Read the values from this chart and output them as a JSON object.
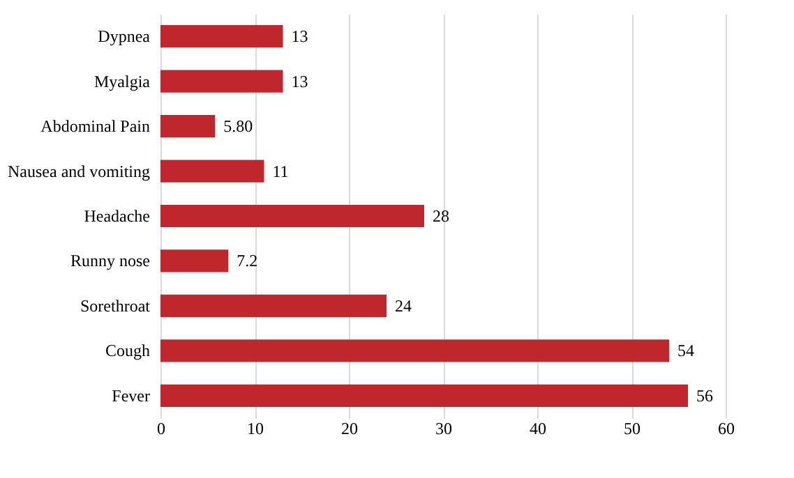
{
  "chart_data": {
    "type": "bar",
    "orientation": "horizontal",
    "categories": [
      "Dypnea",
      "Myalgia",
      "Abdominal Pain",
      "Nausea and vomiting",
      "Headache",
      "Runny nose",
      "Sorethroat",
      "Cough",
      "Fever"
    ],
    "values": [
      13,
      13,
      5.8,
      11,
      28,
      7.2,
      24,
      54,
      56
    ],
    "value_labels": [
      "13",
      "13",
      "5.80",
      "11",
      "28",
      "7.2",
      "24",
      "54",
      "56"
    ],
    "color": "#c0272d",
    "xlim": [
      0,
      60
    ],
    "xticks": [
      0,
      10,
      20,
      30,
      40,
      50,
      60
    ],
    "grid": "x"
  }
}
